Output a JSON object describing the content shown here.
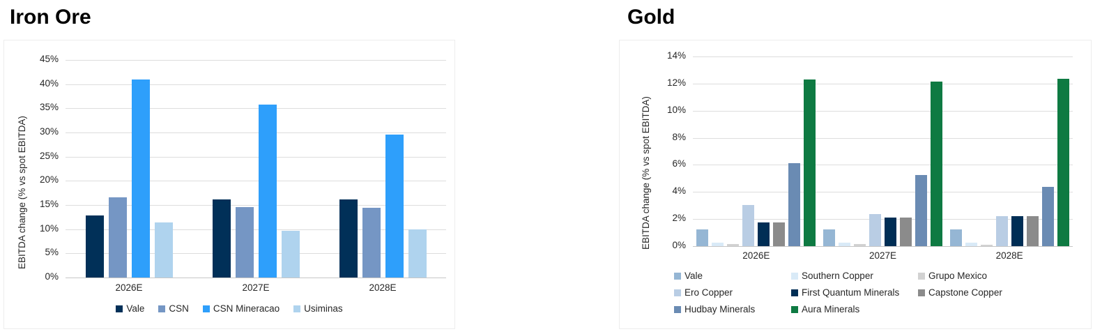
{
  "chart_data": [
    {
      "type": "bar",
      "title": "Iron Ore",
      "ylabel": "EBITDA change (% vs spot EBITDA)",
      "categories": [
        "2026E",
        "2027E",
        "2028E"
      ],
      "series": [
        {
          "name": "Vale",
          "color": "#013058",
          "values": [
            12.8,
            16.2,
            16.2
          ]
        },
        {
          "name": "CSN",
          "color": "#7596C4",
          "values": [
            16.6,
            14.6,
            14.4
          ]
        },
        {
          "name": "CSN Mineracao",
          "color": "#2E9FFB",
          "values": [
            41.0,
            35.8,
            29.5
          ]
        },
        {
          "name": "Usiminas",
          "color": "#AFD3EE",
          "values": [
            11.4,
            9.7,
            9.9
          ]
        }
      ],
      "ylim": [
        0,
        45
      ],
      "ytick_step": 5,
      "tick_suffix": "%",
      "grid": true,
      "legend_position": "bottom-row"
    },
    {
      "type": "bar",
      "title": "Gold",
      "ylabel": "EBITDA change (% vs spot EBITDA)",
      "categories": [
        "2026E",
        "2027E",
        "2028E"
      ],
      "series": [
        {
          "name": "Vale",
          "color": "#95B6D4",
          "values": [
            1.25,
            1.25,
            1.25
          ]
        },
        {
          "name": "Southern Copper",
          "color": "#D9EAF7",
          "values": [
            0.25,
            0.25,
            0.25
          ]
        },
        {
          "name": "Grupo Mexico",
          "color": "#D2D2D2",
          "values": [
            0.15,
            0.15,
            0.1
          ]
        },
        {
          "name": "Ero Copper",
          "color": "#B9CDE4",
          "values": [
            3.05,
            2.35,
            2.2
          ]
        },
        {
          "name": "First Quantum Minerals",
          "color": "#002E55",
          "values": [
            1.75,
            2.1,
            2.2
          ]
        },
        {
          "name": "Capstone Copper",
          "color": "#8B8B8B",
          "values": [
            1.75,
            2.1,
            2.2
          ]
        },
        {
          "name": "Hudbay Minerals",
          "color": "#6A8BB3",
          "values": [
            6.15,
            5.25,
            4.4
          ]
        },
        {
          "name": "Aura Minerals",
          "color": "#0E7A42",
          "values": [
            12.3,
            12.15,
            12.35
          ]
        }
      ],
      "ylim": [
        0,
        14
      ],
      "ytick_step": 2,
      "tick_suffix": "%",
      "grid": true,
      "legend_position": "bottom-grid-3col"
    }
  ],
  "colors": {
    "gridline": "#dddddd",
    "axis_line": "#c6c6c6",
    "text": "#262626",
    "title": "#000000"
  }
}
